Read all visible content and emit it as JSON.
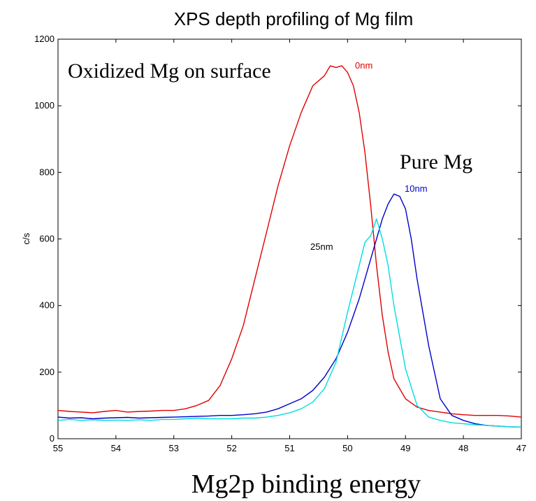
{
  "chart_data": {
    "type": "line",
    "title": "XPS depth profiling of Mg film",
    "xlabel": "Mg2p binding energy",
    "ylabel": "c/s",
    "xlim": [
      55,
      47
    ],
    "ylim": [
      0,
      1200
    ],
    "x_reversed": true,
    "x_ticks": [
      55,
      54,
      53,
      52,
      51,
      50,
      49,
      48,
      47
    ],
    "y_ticks": [
      0,
      200,
      400,
      600,
      800,
      1000,
      1200
    ],
    "grid": false,
    "annotations": {
      "oxidized": "Oxidized Mg on surface",
      "pure": "Pure Mg"
    },
    "series": [
      {
        "name": "0nm",
        "color": "#e00000",
        "x": [
          55.0,
          54.8,
          54.6,
          54.4,
          54.2,
          54.0,
          53.8,
          53.6,
          53.4,
          53.2,
          53.0,
          52.8,
          52.6,
          52.4,
          52.2,
          52.0,
          51.8,
          51.6,
          51.4,
          51.2,
          51.0,
          50.8,
          50.6,
          50.4,
          50.3,
          50.2,
          50.1,
          50.0,
          49.9,
          49.8,
          49.7,
          49.6,
          49.5,
          49.4,
          49.3,
          49.2,
          49.0,
          48.8,
          48.6,
          48.4,
          48.2,
          48.0,
          47.8,
          47.6,
          47.4,
          47.2,
          47.0
        ],
        "y": [
          85,
          82,
          80,
          78,
          82,
          85,
          80,
          82,
          83,
          85,
          85,
          90,
          100,
          115,
          160,
          240,
          340,
          480,
          620,
          760,
          880,
          980,
          1060,
          1090,
          1120,
          1115,
          1120,
          1100,
          1060,
          980,
          860,
          700,
          520,
          370,
          260,
          180,
          120,
          95,
          85,
          80,
          75,
          72,
          70,
          70,
          70,
          68,
          65
        ]
      },
      {
        "name": "10nm",
        "color": "#0000cc",
        "x": [
          55.0,
          54.8,
          54.6,
          54.4,
          54.2,
          54.0,
          53.8,
          53.6,
          53.4,
          53.2,
          53.0,
          52.8,
          52.6,
          52.4,
          52.2,
          52.0,
          51.8,
          51.6,
          51.4,
          51.2,
          51.0,
          50.8,
          50.6,
          50.4,
          50.2,
          50.0,
          49.8,
          49.6,
          49.5,
          49.4,
          49.3,
          49.2,
          49.1,
          49.0,
          48.9,
          48.8,
          48.6,
          48.4,
          48.2,
          48.0,
          47.8,
          47.6,
          47.4,
          47.2,
          47.0
        ],
        "y": [
          65,
          62,
          63,
          60,
          62,
          63,
          64,
          62,
          63,
          64,
          65,
          66,
          67,
          68,
          70,
          70,
          72,
          75,
          80,
          90,
          105,
          120,
          145,
          185,
          240,
          320,
          420,
          540,
          600,
          660,
          705,
          735,
          728,
          690,
          600,
          480,
          280,
          120,
          70,
          55,
          45,
          40,
          38,
          36,
          35
        ]
      },
      {
        "name": "25nm",
        "color": "#00dddd",
        "x": [
          55.0,
          54.8,
          54.6,
          54.4,
          54.2,
          54.0,
          53.8,
          53.6,
          53.4,
          53.2,
          53.0,
          52.8,
          52.6,
          52.4,
          52.2,
          52.0,
          51.8,
          51.6,
          51.4,
          51.2,
          51.0,
          50.8,
          50.6,
          50.4,
          50.2,
          50.0,
          49.8,
          49.7,
          49.6,
          49.5,
          49.4,
          49.3,
          49.2,
          49.0,
          48.8,
          48.6,
          48.4,
          48.2,
          48.0,
          47.8,
          47.6,
          47.4,
          47.2,
          47.0
        ],
        "y": [
          55,
          58,
          55,
          57,
          55,
          56,
          55,
          57,
          55,
          58,
          58,
          60,
          62,
          60,
          60,
          60,
          62,
          62,
          65,
          70,
          78,
          90,
          110,
          150,
          230,
          380,
          520,
          590,
          610,
          660,
          600,
          520,
          400,
          210,
          100,
          65,
          55,
          48,
          45,
          42,
          40,
          38,
          36,
          35
        ]
      }
    ]
  }
}
